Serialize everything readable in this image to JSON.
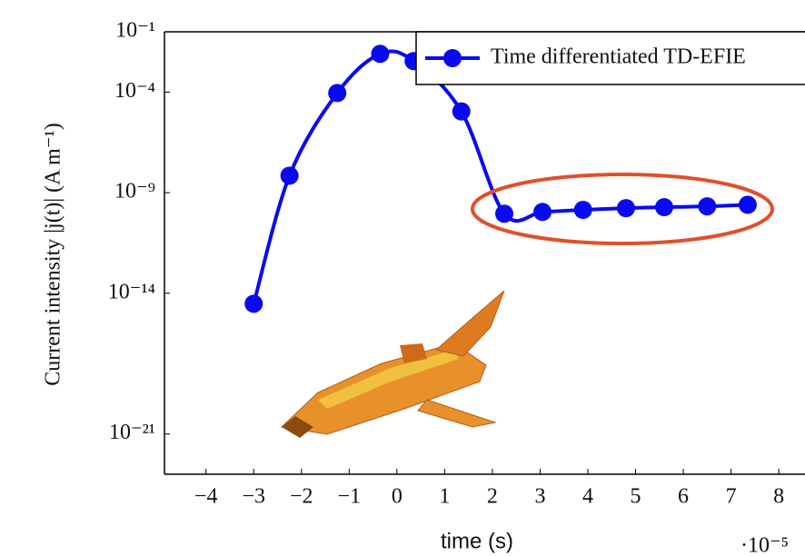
{
  "chart_data": {
    "type": "line",
    "y_label": "Current intensity |j(t)| (A m⁻¹)",
    "x_label": "time (s)",
    "x_multiplier": "·10⁻⁵",
    "log_y": true,
    "series": [
      {
        "name": "Time differentiated TD-EFIE",
        "color": "#0a0af0",
        "x": [
          -3,
          -2.25,
          -1.25,
          -0.35,
          0.35,
          1.35,
          2.25,
          3.05,
          3.9,
          4.8,
          5.6,
          6.5,
          7.35
        ],
        "values": [
          3e-15,
          7e-09,
          9e-05,
          0.008,
          0.0035,
          1.1e-05,
          9e-11,
          1.1e-10,
          1.4e-10,
          1.7e-10,
          1.9e-10,
          2.1e-10,
          2.5e-10
        ]
      }
    ],
    "xlim": [
      -4.87,
      8.55
    ],
    "xticks": [
      {
        "value": -4,
        "label": "−4"
      },
      {
        "value": -3,
        "label": "−3"
      },
      {
        "value": -2,
        "label": "−2"
      },
      {
        "value": -1,
        "label": "−1"
      },
      0,
      1,
      2,
      3,
      4,
      5,
      6,
      7,
      8
    ],
    "ylim": [
      1e-23,
      0.1
    ],
    "yticks": [
      {
        "value": 0.1,
        "label": "10⁻¹"
      },
      {
        "value": 0.0001,
        "label": "10⁻⁴"
      },
      {
        "value": 1e-09,
        "label": "10⁻⁹"
      },
      {
        "value": 1e-14,
        "label": "10⁻¹⁴"
      },
      {
        "value": 1e-21,
        "label": "10⁻²¹"
      }
    ],
    "legend": "top-right"
  }
}
